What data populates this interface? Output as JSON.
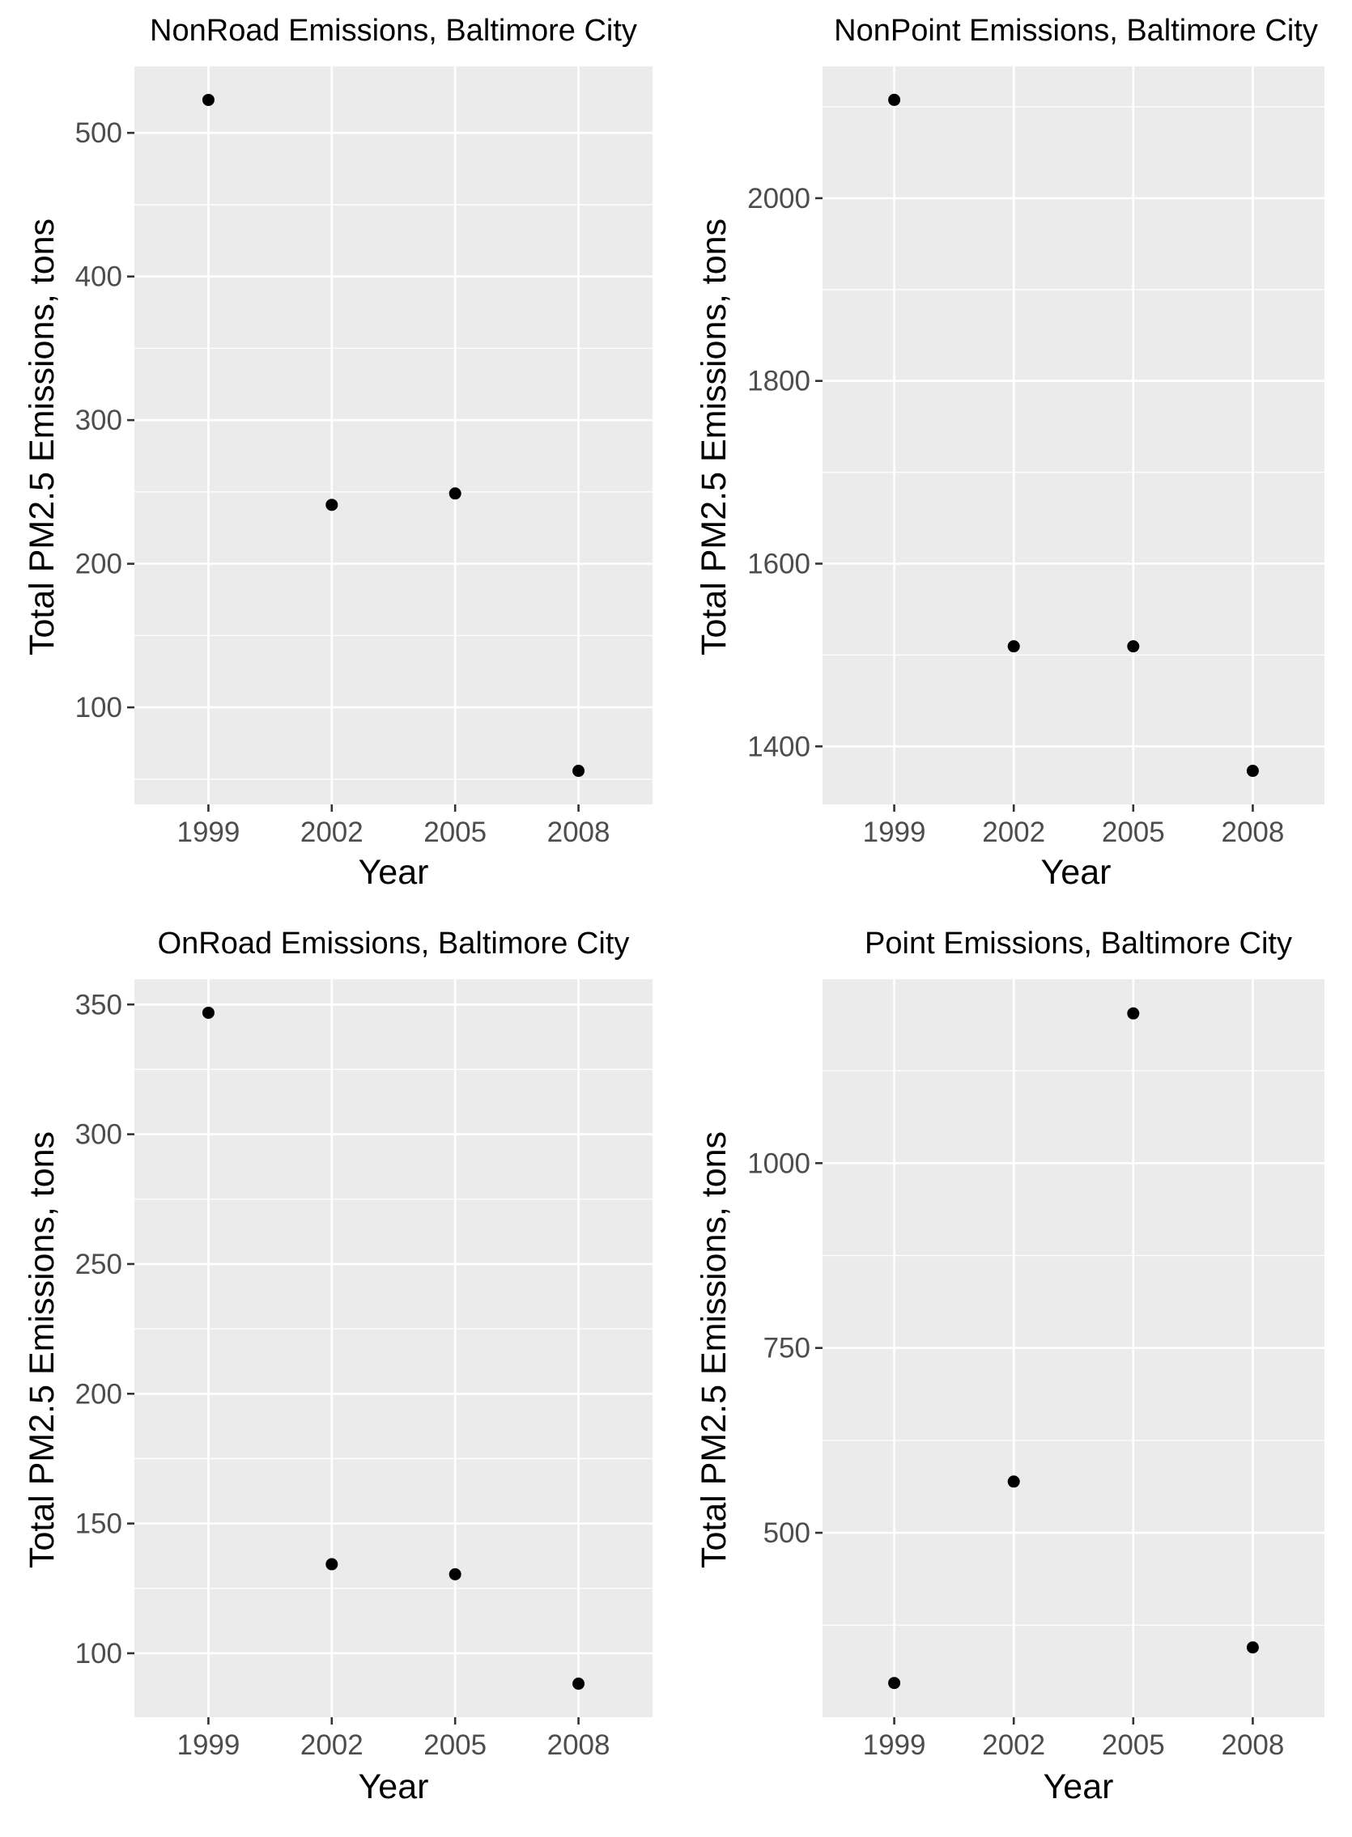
{
  "colors": {
    "panel_background": "#EBEBEB",
    "grid": "#FFFFFF",
    "tick_label": "#4D4D4D",
    "point": "#000000"
  },
  "chart_data": [
    {
      "type": "scatter",
      "title": "NonRoad Emissions, Baltimore City",
      "xlabel": "Year",
      "ylabel": "Total PM2.5 Emissions, tons",
      "x": [
        "1999",
        "2002",
        "2005",
        "2008"
      ],
      "y": [
        522.94,
        241.02,
        248.93,
        55.82
      ],
      "yticks": [
        100,
        200,
        300,
        400,
        500
      ],
      "ylim": [
        32.45,
        546.31
      ],
      "grid": true,
      "legend": "none"
    },
    {
      "type": "scatter",
      "title": "NonPoint Emissions, Baltimore City",
      "xlabel": "Year",
      "ylabel": "Total PM2.5 Emissions, tons",
      "x": [
        "1999",
        "2002",
        "2005",
        "2008"
      ],
      "y": [
        2107.63,
        1509.5,
        1509.5,
        1373.21
      ],
      "yticks": [
        1400,
        1600,
        1800,
        2000
      ],
      "ylim": [
        1336.5,
        2144.3
      ],
      "grid": true,
      "legend": "none"
    },
    {
      "type": "scatter",
      "title": "OnRoad Emissions, Baltimore City",
      "xlabel": "Year",
      "ylabel": "Total PM2.5 Emissions, tons",
      "x": [
        "1999",
        "2002",
        "2005",
        "2008"
      ],
      "y": [
        346.82,
        134.31,
        130.43,
        88.28
      ],
      "yticks": [
        100,
        150,
        200,
        250,
        300,
        350
      ],
      "ylim": [
        75.35,
        359.75
      ],
      "grid": true,
      "legend": "none"
    },
    {
      "type": "scatter",
      "title": "Point Emissions, Baltimore City",
      "xlabel": "Year",
      "ylabel": "Total PM2.5 Emissions, tons",
      "x": [
        "1999",
        "2002",
        "2005",
        "2008"
      ],
      "y": [
        296.8,
        569.26,
        1202.49,
        344.98
      ],
      "yticks": [
        500,
        750,
        1000
      ],
      "ylim": [
        250.5,
        1248.8
      ],
      "grid": true,
      "legend": "none"
    }
  ]
}
